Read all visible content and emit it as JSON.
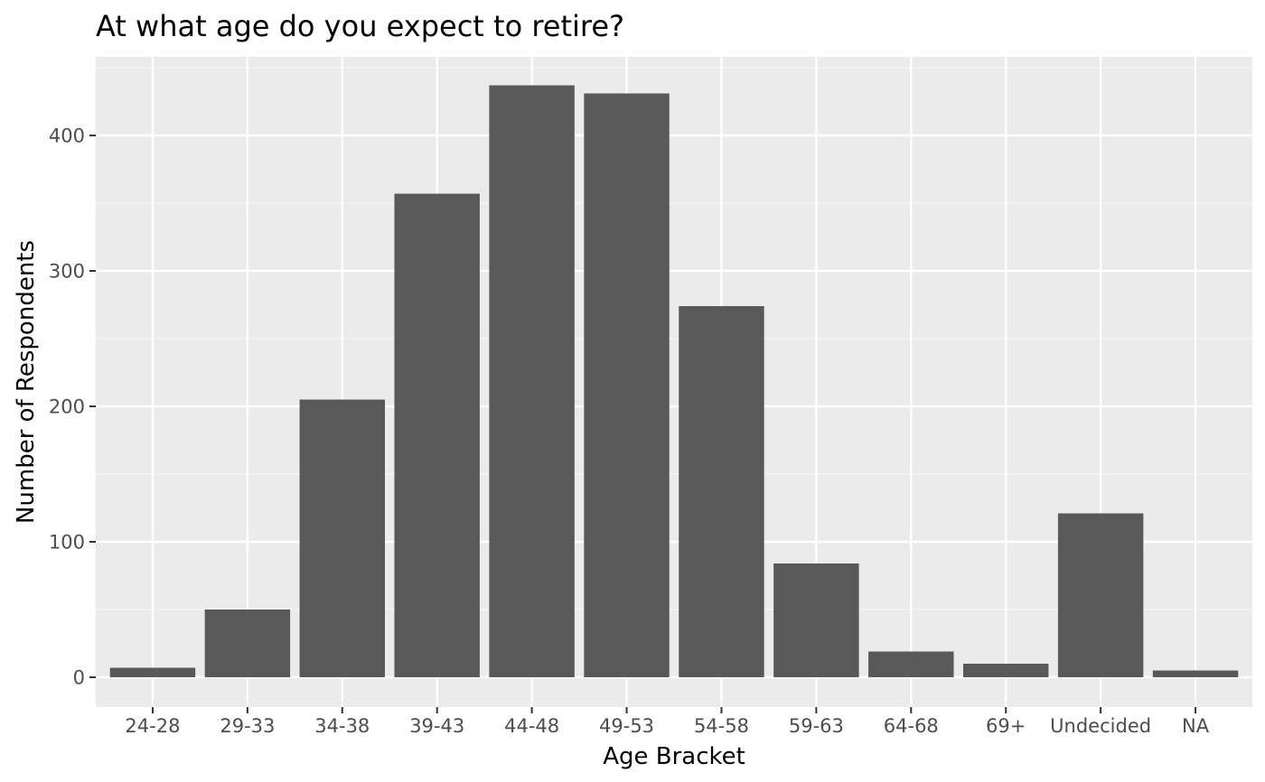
{
  "chart_data": {
    "type": "bar",
    "title": "At what age do you expect to retire?",
    "xlabel": "Age Bracket",
    "ylabel": "Number of Respondents",
    "categories": [
      "24-28",
      "29-33",
      "34-38",
      "39-43",
      "44-48",
      "49-53",
      "54-58",
      "59-63",
      "64-68",
      "69+",
      "Undecided",
      "NA"
    ],
    "values": [
      7,
      50,
      205,
      357,
      437,
      431,
      274,
      84,
      19,
      10,
      121,
      5
    ],
    "ylim": [
      -22,
      458
    ],
    "yticks": [
      0,
      100,
      200,
      300,
      400
    ],
    "grid": true,
    "legend": "none",
    "colors": {
      "bar": "#595959",
      "panel": "#ebebeb",
      "grid_major": "#ffffff",
      "grid_minor": "#f5f5f5",
      "tick": "#333333"
    }
  }
}
